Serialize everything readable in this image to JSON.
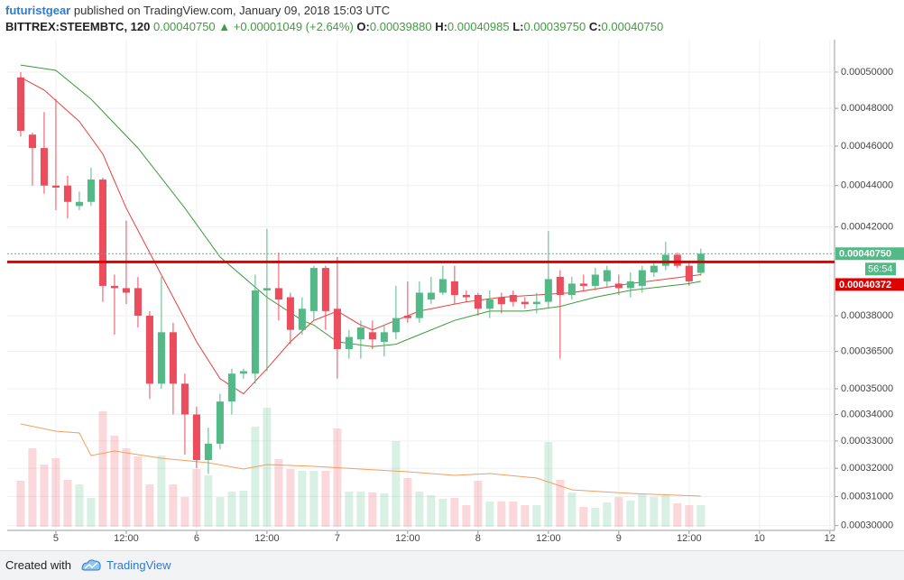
{
  "header": {
    "user": "futuristgear",
    "published": "published on TradingView.com, January 09, 2018 15:03 UTC",
    "symbol": "BITTREX:STEEMBTC, 120",
    "last": "0.00040750",
    "change": "+0.00001049 (+2.64%)",
    "o_label": "O:",
    "o": "0.00039880",
    "h_label": "H:",
    "h": "0.00040985",
    "l_label": "L:",
    "l": "0.00039750",
    "c_label": "C:",
    "c": "0.00040750"
  },
  "footer": {
    "created_with": "Created with",
    "brand": "TradingView"
  },
  "chart_data": {
    "type": "candlestick",
    "log_scale": true,
    "grid": true,
    "up_color": "#53b987",
    "down_color": "#eb4d5c",
    "x": [
      -6,
      -4,
      -2,
      0,
      2,
      4,
      6,
      8,
      10,
      12,
      14,
      16,
      18,
      20,
      22,
      24,
      26,
      28,
      30,
      32,
      34,
      36,
      38,
      40,
      42,
      44,
      46,
      48,
      50,
      52,
      54,
      56,
      58,
      60,
      62,
      64,
      66,
      68,
      70,
      72,
      74,
      76,
      78,
      80,
      82,
      84,
      86,
      88,
      90,
      92,
      94,
      96,
      98,
      100,
      102,
      104,
      106,
      108,
      110
    ],
    "open": [
      0.000497,
      0.000466,
      0.000459,
      0.00044,
      0.00044,
      0.00043,
      0.000432,
      0.000443,
      0.000393,
      0.000392,
      0.000392,
      0.00038,
      0.000352,
      0.000373,
      0.000352,
      0.00034,
      0.000323,
      0.000329,
      0.000345,
      0.000356,
      0.000356,
      0.000391,
      0.000392,
      0.000388,
      0.000374,
      0.000382,
      0.000401,
      0.000383,
      0.000366,
      0.00037,
      0.000373,
      0.000369,
      0.000373,
      0.00038,
      0.000379,
      0.000387,
      0.00039,
      0.000395,
      0.000389,
      0.000389,
      0.000383,
      0.000388,
      0.000389,
      0.000386,
      0.000385,
      0.000386,
      0.000397,
      0.000389,
      0.000394,
      0.000393,
      0.000395,
      0.000394,
      0.000392,
      0.000393,
      0.000399,
      0.000402,
      0.000407,
      0.000402,
      0.0003988
    ],
    "high": [
      0.0005,
      0.000467,
      0.000478,
      0.000485,
      0.000445,
      0.000437,
      0.000449,
      0.000444,
      0.000398,
      0.000423,
      0.000397,
      0.000382,
      0.000397,
      0.000377,
      0.000356,
      0.000343,
      0.000335,
      0.000348,
      0.000358,
      0.000358,
      0.000398,
      0.000419,
      0.000408,
      0.00039,
      0.000388,
      0.000402,
      0.000402,
      0.000406,
      0.000374,
      0.000378,
      0.000378,
      0.000376,
      0.000393,
      0.000395,
      0.000395,
      0.000397,
      0.000402,
      0.000402,
      0.000391,
      0.00039,
      0.000391,
      0.00039,
      0.000391,
      0.000388,
      0.00039,
      0.000418,
      0.0004,
      0.000397,
      0.000398,
      0.000401,
      0.000402,
      0.000398,
      0.000399,
      0.000402,
      0.000404,
      0.000413,
      0.000408,
      0.000404,
      0.00040985
    ],
    "low": [
      0.000465,
      0.00044,
      0.000436,
      0.000428,
      0.000424,
      0.000428,
      0.00043,
      0.000386,
      0.000372,
      0.000385,
      0.000375,
      0.000346,
      0.00035,
      0.00034,
      0.000325,
      0.00032,
      0.000318,
      0.000327,
      0.00034,
      0.000354,
      0.000352,
      0.000357,
      0.000378,
      0.000368,
      0.000372,
      0.000378,
      0.000374,
      0.000354,
      0.000362,
      0.000362,
      0.000366,
      0.000363,
      0.00037,
      0.000377,
      0.000377,
      0.000385,
      0.000389,
      0.000385,
      0.000386,
      0.00038,
      0.000379,
      0.000381,
      0.000384,
      0.000383,
      0.000381,
      0.000383,
      0.000362,
      0.000387,
      0.000391,
      0.000391,
      0.000392,
      0.000389,
      0.000388,
      0.00039,
      0.000397,
      0.0004,
      0.000401,
      0.000393,
      0.0003975
    ],
    "close": [
      0.000468,
      0.000459,
      0.00044,
      0.000439,
      0.000432,
      0.000432,
      0.000443,
      0.000393,
      0.000392,
      0.00039,
      0.00038,
      0.000352,
      0.000373,
      0.000352,
      0.00034,
      0.000323,
      0.000329,
      0.000345,
      0.000356,
      0.000357,
      0.000391,
      0.000392,
      0.000387,
      0.000374,
      0.000383,
      0.000401,
      0.000382,
      0.000366,
      0.000371,
      0.000375,
      0.00037,
      0.000373,
      0.000379,
      0.000379,
      0.00039,
      0.00039,
      0.000396,
      0.000389,
      0.000388,
      0.000383,
      0.000387,
      0.000385,
      0.000386,
      0.000385,
      0.000386,
      0.000396,
      0.000389,
      0.000394,
      0.000393,
      0.000398,
      0.0004,
      0.000392,
      0.000395,
      0.0004,
      0.000402,
      0.000407,
      0.000402,
      0.000395,
      0.0004075
    ],
    "volume": [
      51,
      87,
      69,
      76,
      52,
      47,
      32,
      128,
      101,
      87,
      78,
      47,
      79,
      47,
      33,
      64,
      57,
      33,
      39,
      40,
      111,
      132,
      75,
      64,
      62,
      62,
      62,
      109,
      39,
      39,
      38,
      37,
      95,
      54,
      39,
      35,
      31,
      32,
      24,
      51,
      28,
      28,
      28,
      24,
      24,
      94,
      52,
      38,
      22,
      21,
      27,
      33,
      29,
      36,
      33,
      35,
      26,
      24,
      24
    ],
    "volume_ylim": [
      0,
      528
    ],
    "xlim": [
      -8.3,
      132.8
    ],
    "xticks": [
      {
        "value": 0,
        "label": "5"
      },
      {
        "value": 12,
        "label": "12:00"
      },
      {
        "value": 24,
        "label": "6"
      },
      {
        "value": 36,
        "label": "12:00"
      },
      {
        "value": 48,
        "label": "7"
      },
      {
        "value": 60,
        "label": "12:00"
      },
      {
        "value": 72,
        "label": "8"
      },
      {
        "value": 84,
        "label": "12:00"
      },
      {
        "value": 96,
        "label": "9"
      },
      {
        "value": 108,
        "label": "12:00"
      },
      {
        "value": 120,
        "label": "10"
      },
      {
        "value": 132,
        "label": "12"
      }
    ],
    "ylim": [
      0.0002996,
      0.0005123
    ],
    "yticks": [
      {
        "value": 0.0005,
        "label": "0.00050000"
      },
      {
        "value": 0.00048,
        "label": "0.00048000"
      },
      {
        "value": 0.00046,
        "label": "0.00046000"
      },
      {
        "value": 0.00044,
        "label": "0.00044000"
      },
      {
        "value": 0.00042,
        "label": "0.00042000"
      },
      {
        "value": 0.00038,
        "label": "0.00038000"
      },
      {
        "value": 0.000365,
        "label": "0.00036500"
      },
      {
        "value": 0.00035,
        "label": "0.00035000"
      },
      {
        "value": 0.00034,
        "label": "0.00034000"
      },
      {
        "value": 0.00033,
        "label": "0.00033000"
      },
      {
        "value": 0.00032,
        "label": "0.00032000"
      },
      {
        "value": 0.00031,
        "label": "0.00031000"
      },
      {
        "value": 0.0003,
        "label": "0.00030000"
      }
    ],
    "lines": [
      {
        "color": "#e8403a",
        "x": [
          -6,
          -2,
          4,
          8,
          12,
          16,
          20,
          24,
          28,
          32,
          36,
          40,
          44,
          48,
          52,
          54,
          58,
          62,
          70,
          76,
          88,
          98,
          110
        ],
        "values": [
          0.000497,
          0.00049,
          0.000473,
          0.000456,
          0.000429,
          0.000408,
          0.000388,
          0.000369,
          0.000354,
          0.000348,
          0.000358,
          0.000369,
          0.000378,
          0.000382,
          0.000376,
          0.000374,
          0.000378,
          0.000382,
          0.000386,
          0.000388,
          0.00039,
          0.000394,
          0.000398
        ]
      },
      {
        "color": "#3a9b3a",
        "x": [
          -6,
          0,
          6,
          14,
          22,
          28,
          36,
          42,
          44,
          48,
          54,
          58,
          62,
          68,
          74,
          80,
          86,
          92,
          98,
          108,
          110
        ],
        "values": [
          0.000504,
          0.000501,
          0.000485,
          0.000459,
          0.000429,
          0.000406,
          0.000388,
          0.000378,
          0.000376,
          0.000369,
          0.000367,
          0.000368,
          0.000372,
          0.000378,
          0.000382,
          0.000382,
          0.000384,
          0.000388,
          0.000391,
          0.000394,
          0.000395
        ]
      },
      {
        "color": "#f0a060",
        "axis": "volume",
        "x": [
          -6,
          0,
          4,
          6,
          10,
          18,
          26,
          32,
          36,
          44,
          52,
          60,
          68,
          74,
          82,
          88,
          98,
          110
        ],
        "values": [
          114,
          106,
          104,
          79,
          84,
          76,
          71,
          64,
          69,
          67,
          64,
          61,
          57,
          59,
          54,
          41,
          37,
          34
        ]
      }
    ],
    "hline": {
      "value": 0.00040372,
      "label": "0.00040372",
      "color": "#e00000"
    },
    "last_price": {
      "value": 0.0004075,
      "label": "0.00040750",
      "countdown": "56:54",
      "color": "#53b987"
    }
  }
}
